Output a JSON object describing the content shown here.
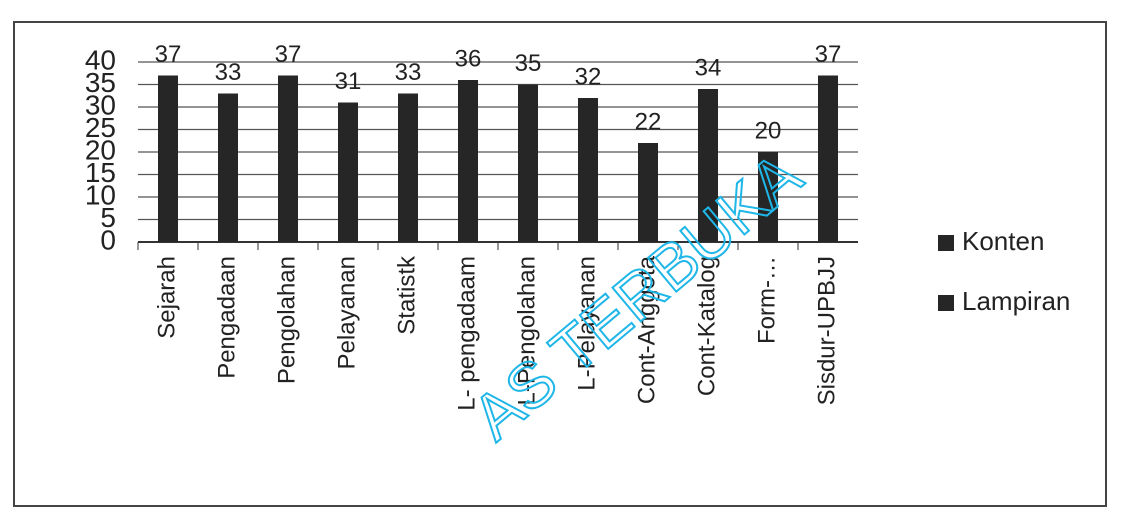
{
  "chart_data": {
    "type": "bar",
    "categories": [
      "Sejarah",
      "Pengadaan",
      "Pengolahan",
      "Pelayanan",
      "Statistk",
      "L- pengadaam",
      "L-Pengolahan",
      "L-Pelayanan",
      "Cont-Anggota",
      "Cont-Katalog",
      "Form-…",
      "Sisdur-UPBJJ"
    ],
    "series": [
      {
        "name": "Konten",
        "color": "#262626",
        "values": [
          37,
          33,
          37,
          31,
          33,
          36,
          35,
          32,
          22,
          34,
          20,
          37
        ]
      },
      {
        "name": "Lampiran",
        "color": "#262626",
        "values": [
          null,
          null,
          null,
          null,
          null,
          null,
          null,
          null,
          null,
          null,
          null,
          null
        ]
      }
    ],
    "ylim": [
      0,
      40
    ],
    "yticks": [
      0,
      5,
      10,
      15,
      20,
      25,
      30,
      35,
      40
    ],
    "grid": true,
    "legend": "right"
  },
  "watermark": "AS TERBUKA"
}
